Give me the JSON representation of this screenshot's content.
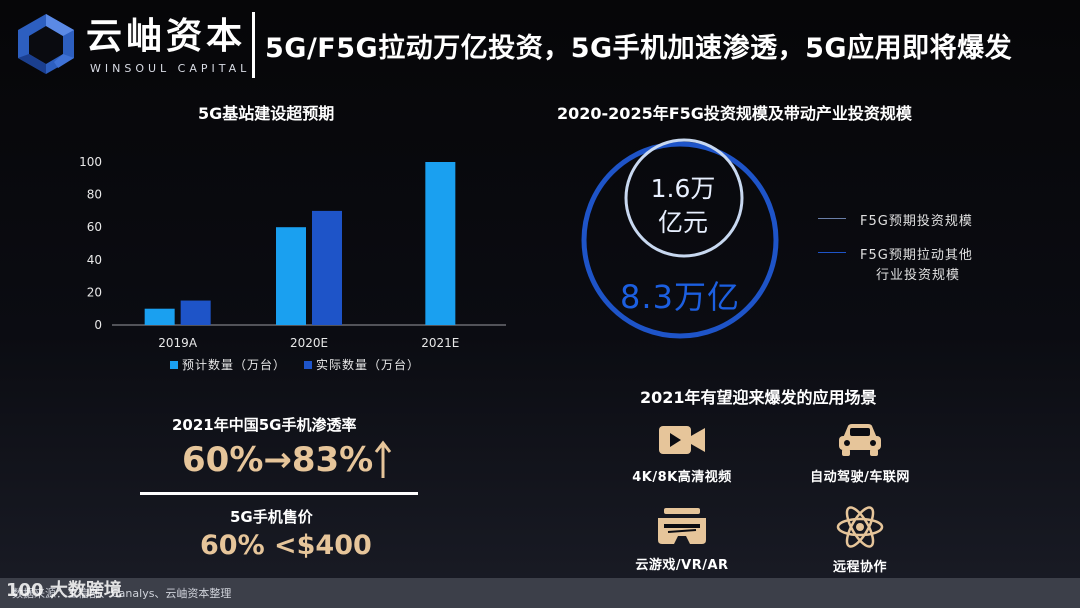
{
  "header": {
    "brand_cn": "云岫资本",
    "brand_en": "WINSOUL CAPITAL",
    "title": "5G/F5G拉动万亿投资，5G手机加速渗透，5G应用即将爆发"
  },
  "left_panel": {
    "title": "5G基站建设超预期"
  },
  "chart_data": {
    "type": "bar",
    "title": "5G基站建设超预期",
    "categories": [
      "2019A",
      "2020E",
      "2021E"
    ],
    "series": [
      {
        "name": "预计数量（万台）",
        "values": [
          10,
          60,
          100
        ],
        "color": "#1aa0f0"
      },
      {
        "name": "实际数量（万台）",
        "values": [
          15,
          70,
          null
        ],
        "color": "#1e54c8"
      }
    ],
    "ylim": [
      0,
      100
    ],
    "yticks": [
      0,
      20,
      40,
      60,
      80,
      100
    ],
    "grid": false,
    "legend": "bottom"
  },
  "right_panel": {
    "title": "2020-2025年F5G投资规模及带动产业投资规模",
    "inner_value_line1": "1.6万",
    "inner_value_line2": "亿元",
    "outer_value": "8.3万亿",
    "legend": [
      {
        "label": "F5G预期投资规模",
        "color": "#6a7fa8"
      },
      {
        "label_line1": "F5G预期拉动其他",
        "label_line2": "行业投资规模",
        "color": "#1e54c8"
      }
    ]
  },
  "stats": {
    "penetration_label": "2021年中国5G手机渗透率",
    "penetration_value": "60%→83%",
    "price_label": "5G手机售价",
    "price_value": "60% <$400"
  },
  "applications": {
    "title": "2021年有望迎来爆发的应用场景",
    "items": [
      {
        "label": "4K/8K高清视频",
        "icon": "video-camera-icon"
      },
      {
        "label": "自动驾驶/车联网",
        "icon": "car-icon"
      },
      {
        "label": "云游戏/VR/AR",
        "icon": "vr-headset-icon"
      },
      {
        "label": "远程协作",
        "icon": "atom-icon"
      }
    ],
    "icon_color": "#e6c59a"
  },
  "footer": {
    "source": "数据来源：工信部、Canalys、云岫资本整理",
    "watermark": "100 大数跨境"
  }
}
